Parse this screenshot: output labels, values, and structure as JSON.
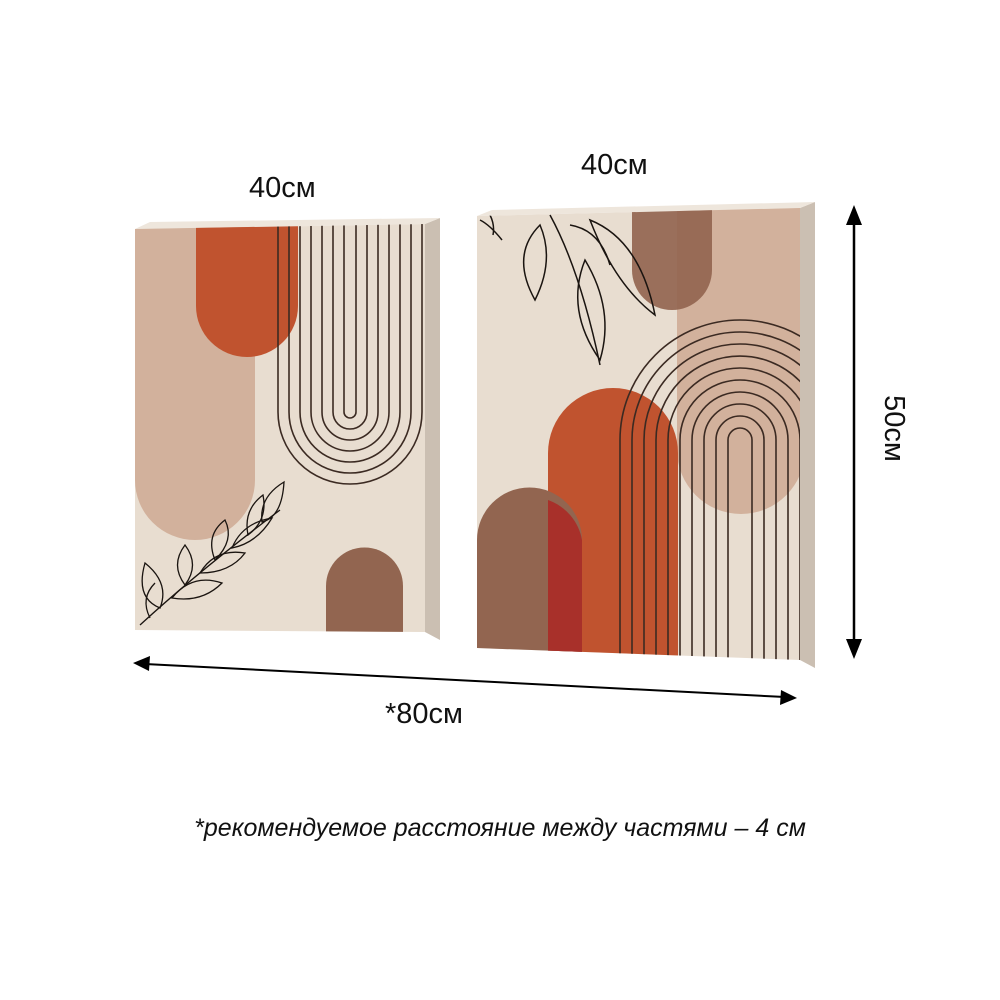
{
  "labels": {
    "left_width": "40см",
    "right_width": "40см",
    "height": "50см",
    "total_width": "*80см",
    "footnote": "*рекомендуемое расстояние между частями – 4 см"
  },
  "colors": {
    "background_canvas": "#e8ddd0",
    "tan": "#d2b19c",
    "terracotta": "#c0532f",
    "brown": "#926550",
    "red": "#a8302a",
    "line": "#3b2a22"
  }
}
